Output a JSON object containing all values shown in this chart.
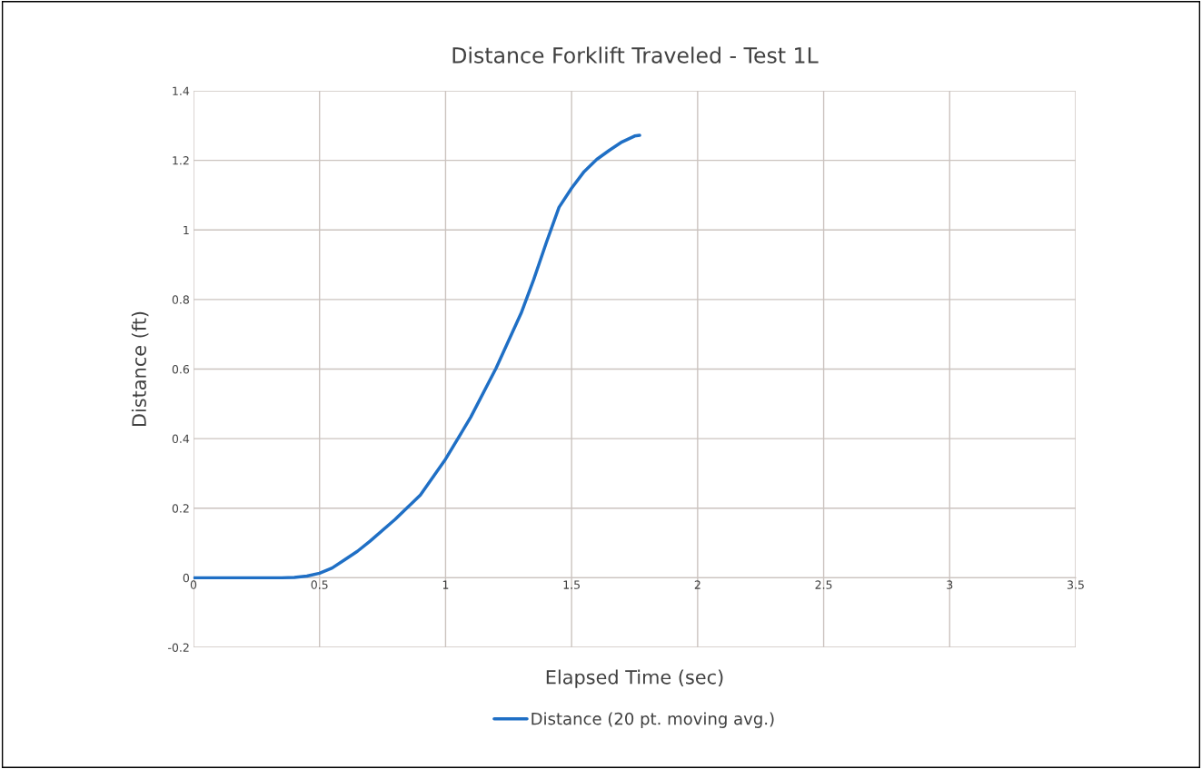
{
  "chart_data": {
    "type": "line",
    "title": "Distance Forklift Traveled - Test 1L",
    "xlabel": "Elapsed Time (sec)",
    "ylabel": "Distance (ft)",
    "xlim": [
      0,
      3.5
    ],
    "xticks": [
      0,
      0.5,
      1,
      1.5,
      2,
      2.5,
      3,
      3.5
    ],
    "ylim": [
      -0.2,
      1.4
    ],
    "yticks": [
      -0.2,
      0,
      0.2,
      0.4,
      0.6,
      0.8,
      1,
      1.2,
      1.4
    ],
    "grid": true,
    "legend": "bottom",
    "line_style": "solid",
    "marker": "none",
    "series": [
      {
        "name": "Distance (20 pt. moving avg.)",
        "color": "#1f6fc5",
        "x": [
          0,
          0.2,
          0.35,
          0.4,
          0.45,
          0.5,
          0.55,
          0.6,
          0.65,
          0.7,
          0.8,
          0.9,
          1.0,
          1.1,
          1.2,
          1.3,
          1.35,
          1.4,
          1.45,
          1.5,
          1.55,
          1.6,
          1.65,
          1.7,
          1.75,
          1.77
        ],
        "values": [
          0,
          0,
          0,
          0.001,
          0.005,
          0.013,
          0.028,
          0.052,
          0.076,
          0.105,
          0.168,
          0.238,
          0.341,
          0.462,
          0.602,
          0.761,
          0.858,
          0.964,
          1.065,
          1.12,
          1.168,
          1.203,
          1.229,
          1.253,
          1.27,
          1.272
        ]
      }
    ]
  }
}
